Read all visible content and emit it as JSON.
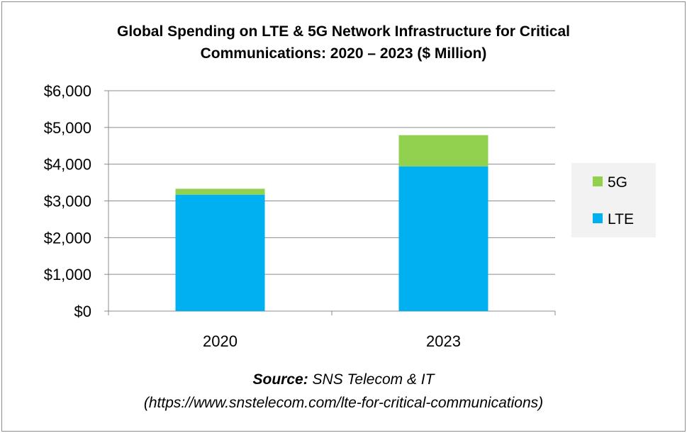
{
  "chart_data": {
    "type": "bar",
    "stacked": true,
    "title": "Global Spending on LTE & 5G Network Infrastructure for Critical Communications: 2020 – 2023 ($ Million)",
    "title_lines": [
      "Global Spending on LTE & 5G Network Infrastructure for Critical",
      "Communications: 2020 – 2023 ($ Million)"
    ],
    "categories": [
      "2020",
      "2023"
    ],
    "series": [
      {
        "name": "LTE",
        "values": [
          3170,
          3940
        ],
        "color": "#00b0f0"
      },
      {
        "name": "5G",
        "values": [
          160,
          850
        ],
        "color": "#92d050"
      }
    ],
    "ylim": [
      0,
      6000
    ],
    "yticks": [
      0,
      1000,
      2000,
      3000,
      4000,
      5000,
      6000
    ],
    "ytick_labels": [
      "$0",
      "$1,000",
      "$2,000",
      "$3,000",
      "$4,000",
      "$5,000",
      "$6,000"
    ],
    "grid": true,
    "legend_position": "right",
    "legend_order": [
      "5G",
      "LTE"
    ],
    "xlabel": "",
    "ylabel": ""
  },
  "source": {
    "label": "Source:",
    "text": " SNS Telecom & IT",
    "url": "(https://www.snstelecom.com/lte-for-critical-communications)"
  }
}
